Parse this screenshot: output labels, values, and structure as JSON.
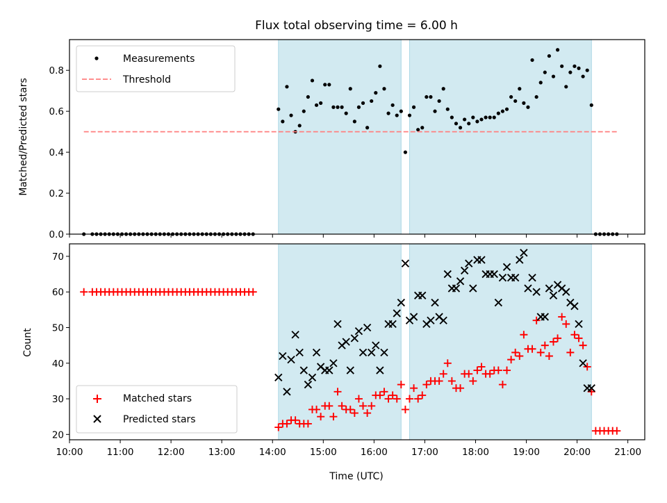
{
  "chart_data": [
    {
      "type": "scatter",
      "title": "Flux total observing time = 6.00 h",
      "ylabel": "Matched/Predicted stars",
      "xlabel": "",
      "xlim": [
        "10:00",
        "21:20"
      ],
      "ylim": [
        0,
        0.95
      ],
      "yticks": [
        0.0,
        0.2,
        0.4,
        0.6,
        0.8
      ],
      "ytick_labels": [
        "0.0",
        "0.2",
        "0.4",
        "0.6",
        "0.8"
      ],
      "shaded_intervals": [
        [
          "14:07",
          "16:32"
        ],
        [
          "16:42",
          "20:17"
        ]
      ],
      "shade_color": "#add8e6",
      "legend": {
        "placement": "upper-left",
        "entries": [
          "Measurements",
          "Threshold"
        ]
      },
      "series": [
        {
          "name": "Measurements",
          "marker": "dot",
          "color": "#000000",
          "x": [
            "10:17",
            "10:27",
            "10:32",
            "10:37",
            "10:42",
            "10:47",
            "10:52",
            "10:57",
            "11:02",
            "11:07",
            "11:12",
            "11:17",
            "11:22",
            "11:27",
            "11:32",
            "11:37",
            "11:42",
            "11:47",
            "11:52",
            "11:57",
            "12:02",
            "12:07",
            "12:12",
            "12:17",
            "12:22",
            "12:27",
            "12:32",
            "12:37",
            "12:42",
            "12:47",
            "12:52",
            "12:57",
            "13:02",
            "13:07",
            "13:12",
            "13:17",
            "13:22",
            "13:27",
            "13:32",
            "13:37",
            "14:07",
            "14:12",
            "14:17",
            "14:22",
            "14:27",
            "14:32",
            "14:37",
            "14:42",
            "14:47",
            "14:52",
            "14:57",
            "15:02",
            "15:07",
            "15:12",
            "15:17",
            "15:22",
            "15:27",
            "15:32",
            "15:37",
            "15:42",
            "15:47",
            "15:52",
            "15:57",
            "16:02",
            "16:07",
            "16:12",
            "16:17",
            "16:22",
            "16:27",
            "16:32",
            "16:37",
            "16:42",
            "16:47",
            "16:52",
            "16:57",
            "17:02",
            "17:07",
            "17:12",
            "17:17",
            "17:22",
            "17:27",
            "17:32",
            "17:37",
            "17:42",
            "17:47",
            "17:52",
            "17:57",
            "18:02",
            "18:07",
            "18:12",
            "18:17",
            "18:22",
            "18:27",
            "18:32",
            "18:37",
            "18:42",
            "18:47",
            "18:52",
            "18:57",
            "19:02",
            "19:07",
            "19:12",
            "19:17",
            "19:22",
            "19:27",
            "19:32",
            "19:37",
            "19:42",
            "19:47",
            "19:52",
            "19:57",
            "20:02",
            "20:07",
            "20:12",
            "20:17",
            "20:22",
            "20:27",
            "20:32",
            "20:37",
            "20:42",
            "20:47"
          ],
          "y": [
            0,
            0,
            0,
            0,
            0,
            0,
            0,
            0,
            0,
            0,
            0,
            0,
            0,
            0,
            0,
            0,
            0,
            0,
            0,
            0,
            0,
            0,
            0,
            0,
            0,
            0,
            0,
            0,
            0,
            0,
            0,
            0,
            0,
            0,
            0,
            0,
            0,
            0,
            0,
            0,
            0.61,
            0.55,
            0.72,
            0.58,
            0.5,
            0.53,
            0.6,
            0.67,
            0.75,
            0.63,
            0.64,
            0.73,
            0.73,
            0.62,
            0.62,
            0.62,
            0.59,
            0.71,
            0.55,
            0.62,
            0.64,
            0.52,
            0.65,
            0.69,
            0.82,
            0.71,
            0.59,
            0.63,
            0.58,
            0.6,
            0.4,
            0.58,
            0.62,
            0.51,
            0.52,
            0.67,
            0.67,
            0.6,
            0.65,
            0.71,
            0.61,
            0.57,
            0.54,
            0.52,
            0.56,
            0.54,
            0.57,
            0.55,
            0.56,
            0.57,
            0.57,
            0.57,
            0.59,
            0.6,
            0.61,
            0.67,
            0.65,
            0.71,
            0.64,
            0.62,
            0.85,
            0.67,
            0.74,
            0.79,
            0.87,
            0.77,
            0.9,
            0.82,
            0.72,
            0.79,
            0.82,
            0.81,
            0.77,
            0.8,
            0.63,
            0,
            0,
            0,
            0,
            0,
            0
          ]
        },
        {
          "name": "Threshold",
          "style": "dashed",
          "color": "#ff7f7f",
          "x": [
            "10:17",
            "20:47"
          ],
          "y": [
            0.5,
            0.5
          ]
        }
      ]
    },
    {
      "type": "scatter",
      "title": "",
      "xlabel": "Time (UTC)",
      "ylabel": "Count",
      "xlim": [
        "10:00",
        "21:20"
      ],
      "ylim": [
        18.5,
        73.5
      ],
      "yticks": [
        20,
        30,
        40,
        50,
        60,
        70
      ],
      "ytick_labels": [
        "20",
        "30",
        "40",
        "50",
        "60",
        "70"
      ],
      "xticks": [
        "10:00",
        "11:00",
        "12:00",
        "13:00",
        "14:00",
        "15:00",
        "16:00",
        "17:00",
        "18:00",
        "19:00",
        "20:00",
        "21:00"
      ],
      "xtick_labels": [
        "10:00",
        "11:00",
        "12:00",
        "13:00",
        "14:00",
        "15:00",
        "16:00",
        "17:00",
        "18:00",
        "19:00",
        "20:00",
        "21:00"
      ],
      "shaded_intervals": [
        [
          "14:07",
          "16:32"
        ],
        [
          "16:42",
          "20:17"
        ]
      ],
      "shade_color": "#add8e6",
      "legend": {
        "placement": "lower-left",
        "entries": [
          "Matched stars",
          "Predicted stars"
        ]
      },
      "series": [
        {
          "name": "Matched stars",
          "marker": "plus",
          "color": "#ff0000",
          "x": [
            "10:17",
            "10:27",
            "10:32",
            "10:37",
            "10:42",
            "10:47",
            "10:52",
            "10:57",
            "11:02",
            "11:07",
            "11:12",
            "11:17",
            "11:22",
            "11:27",
            "11:32",
            "11:37",
            "11:42",
            "11:47",
            "11:52",
            "11:57",
            "12:02",
            "12:07",
            "12:12",
            "12:17",
            "12:22",
            "12:27",
            "12:32",
            "12:37",
            "12:42",
            "12:47",
            "12:52",
            "12:57",
            "13:02",
            "13:07",
            "13:12",
            "13:17",
            "13:22",
            "13:27",
            "13:32",
            "13:37",
            "14:07",
            "14:12",
            "14:17",
            "14:22",
            "14:27",
            "14:32",
            "14:37",
            "14:42",
            "14:47",
            "14:52",
            "14:57",
            "15:02",
            "15:07",
            "15:12",
            "15:17",
            "15:22",
            "15:27",
            "15:32",
            "15:37",
            "15:42",
            "15:47",
            "15:52",
            "15:57",
            "16:02",
            "16:07",
            "16:12",
            "16:17",
            "16:22",
            "16:27",
            "16:32",
            "16:37",
            "16:42",
            "16:47",
            "16:52",
            "16:57",
            "17:02",
            "17:07",
            "17:12",
            "17:17",
            "17:22",
            "17:27",
            "17:32",
            "17:37",
            "17:42",
            "17:47",
            "17:52",
            "17:57",
            "18:02",
            "18:07",
            "18:12",
            "18:17",
            "18:22",
            "18:27",
            "18:32",
            "18:37",
            "18:42",
            "18:47",
            "18:52",
            "18:57",
            "19:02",
            "19:07",
            "19:12",
            "19:17",
            "19:22",
            "19:27",
            "19:32",
            "19:37",
            "19:42",
            "19:47",
            "19:52",
            "19:57",
            "20:02",
            "20:07",
            "20:12",
            "20:17",
            "20:22",
            "20:27",
            "20:32",
            "20:37",
            "20:42",
            "20:47"
          ],
          "y": [
            60,
            60,
            60,
            60,
            60,
            60,
            60,
            60,
            60,
            60,
            60,
            60,
            60,
            60,
            60,
            60,
            60,
            60,
            60,
            60,
            60,
            60,
            60,
            60,
            60,
            60,
            60,
            60,
            60,
            60,
            60,
            60,
            60,
            60,
            60,
            60,
            60,
            60,
            60,
            60,
            22,
            23,
            23,
            24,
            24,
            23,
            23,
            23,
            27,
            27,
            25,
            28,
            28,
            25,
            32,
            28,
            27,
            27,
            26,
            30,
            28,
            26,
            28,
            31,
            31,
            32,
            30,
            31,
            30,
            34,
            27,
            30,
            33,
            30,
            31,
            34,
            35,
            35,
            35,
            37,
            40,
            35,
            33,
            33,
            37,
            37,
            35,
            38,
            39,
            37,
            37,
            38,
            38,
            34,
            38,
            41,
            43,
            42,
            48,
            44,
            44,
            52,
            43,
            45,
            42,
            46,
            47,
            53,
            51,
            43,
            48,
            47,
            45,
            39,
            32,
            21,
            21,
            21,
            21,
            21,
            21
          ]
        },
        {
          "name": "Predicted stars",
          "marker": "x",
          "color": "#000000",
          "x": [
            "14:07",
            "14:12",
            "14:17",
            "14:22",
            "14:27",
            "14:32",
            "14:37",
            "14:42",
            "14:47",
            "14:52",
            "14:57",
            "15:02",
            "15:07",
            "15:12",
            "15:17",
            "15:22",
            "15:27",
            "15:32",
            "15:37",
            "15:42",
            "15:47",
            "15:52",
            "15:57",
            "16:02",
            "16:07",
            "16:12",
            "16:17",
            "16:22",
            "16:27",
            "16:32",
            "16:37",
            "16:42",
            "16:47",
            "16:52",
            "16:57",
            "17:02",
            "17:07",
            "17:12",
            "17:17",
            "17:22",
            "17:27",
            "17:32",
            "17:37",
            "17:42",
            "17:47",
            "17:52",
            "17:57",
            "18:02",
            "18:07",
            "18:12",
            "18:17",
            "18:22",
            "18:27",
            "18:32",
            "18:37",
            "18:42",
            "18:47",
            "18:52",
            "18:57",
            "19:02",
            "19:07",
            "19:12",
            "19:17",
            "19:22",
            "19:27",
            "19:32",
            "19:37",
            "19:42",
            "19:47",
            "19:52",
            "19:57",
            "20:02",
            "20:07",
            "20:12",
            "20:17"
          ],
          "y": [
            36,
            42,
            32,
            41,
            48,
            43,
            38,
            34,
            36,
            43,
            39,
            38,
            38,
            40,
            51,
            45,
            46,
            38,
            47,
            49,
            43,
            50,
            43,
            45,
            38,
            43,
            51,
            51,
            54,
            57,
            68,
            52,
            53,
            59,
            59,
            51,
            52,
            57,
            53,
            52,
            65,
            61,
            61,
            63,
            66,
            68,
            61,
            69,
            69,
            65,
            65,
            65,
            57,
            64,
            67,
            64,
            64,
            69,
            71,
            61,
            64,
            60,
            53,
            53,
            61,
            59,
            62,
            61,
            60,
            57,
            56,
            51,
            40,
            33,
            33
          ]
        }
      ]
    }
  ]
}
